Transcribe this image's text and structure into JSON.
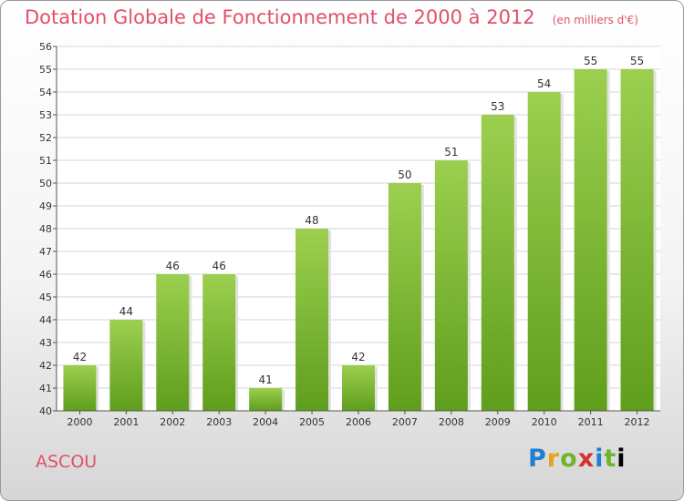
{
  "title": "Dotation Globale de Fonctionnement de 2000 à 2012",
  "subtitle": "(en milliers d'€)",
  "town": "ASCOU",
  "logo": "Proxiti",
  "chart_data": {
    "type": "bar",
    "categories": [
      "2000",
      "2001",
      "2002",
      "2003",
      "2004",
      "2005",
      "2006",
      "2007",
      "2008",
      "2009",
      "2010",
      "2011",
      "2012"
    ],
    "values": [
      42,
      44,
      46,
      46,
      41,
      48,
      42,
      50,
      51,
      53,
      54,
      55,
      55
    ],
    "title": "Dotation Globale de Fonctionnement de 2000 à 2012",
    "ylabel": "(en milliers d'€)",
    "ylim": [
      40,
      56
    ],
    "yticks": [
      40,
      41,
      42,
      43,
      44,
      45,
      46,
      47,
      48,
      49,
      50,
      51,
      52,
      53,
      54,
      55,
      56
    ],
    "grid": true,
    "bar_color": "#7cbf3a"
  }
}
